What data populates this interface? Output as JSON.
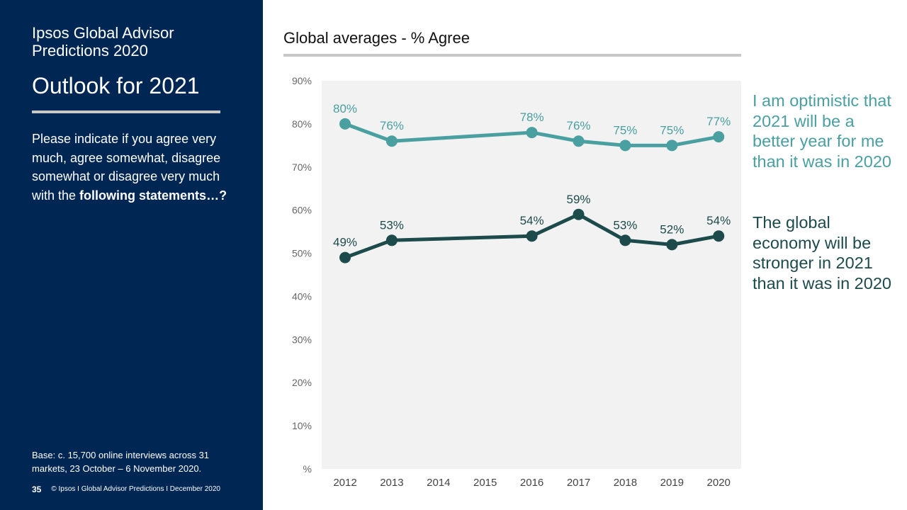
{
  "sidebar": {
    "brand_title": "Ipsos Global Advisor Predictions 2020",
    "page_title": "Outlook for 2021",
    "question_regular": "Please indicate if you agree very much, agree somewhat, disagree somewhat or disagree very much with the ",
    "question_bold": "following statements…?",
    "base_note": "Base: c. 15,700 online interviews across 31 markets,  23 October – 6 November 2020.",
    "page_number": "35",
    "footer_text": "© Ipsos I Global Advisor Predictions I December 2020"
  },
  "chart_data": {
    "type": "line",
    "title": "Global averages - % Agree",
    "categories": [
      "2012",
      "2013",
      "2014",
      "2015",
      "2016",
      "2017",
      "2018",
      "2019",
      "2020"
    ],
    "y_ticks": [
      "%",
      "10%",
      "20%",
      "30%",
      "40%",
      "50%",
      "60%",
      "70%",
      "80%",
      "90%"
    ],
    "ylim": [
      0,
      90
    ],
    "grid": false,
    "plot_background": "#f2f2f2",
    "series": [
      {
        "name": "I am optimistic that 2021 will be a better year for me than it was in 2020",
        "color": "#4a9fa0",
        "values": [
          80,
          76,
          null,
          null,
          78,
          76,
          75,
          75,
          77
        ],
        "labels": [
          "80%",
          "76%",
          null,
          null,
          "78%",
          "76%",
          "75%",
          "75%",
          "77%"
        ]
      },
      {
        "name": "The global economy will be stronger in 2021 than it was in 2020",
        "color": "#1d4a4b",
        "values": [
          49,
          53,
          null,
          null,
          54,
          59,
          53,
          52,
          54
        ],
        "labels": [
          "49%",
          "53%",
          null,
          null,
          "54%",
          "59%",
          "53%",
          "52%",
          "54%"
        ]
      }
    ]
  },
  "colors": {
    "sidebar_background": "#002654",
    "accent_rule": "#c8c8c8"
  }
}
